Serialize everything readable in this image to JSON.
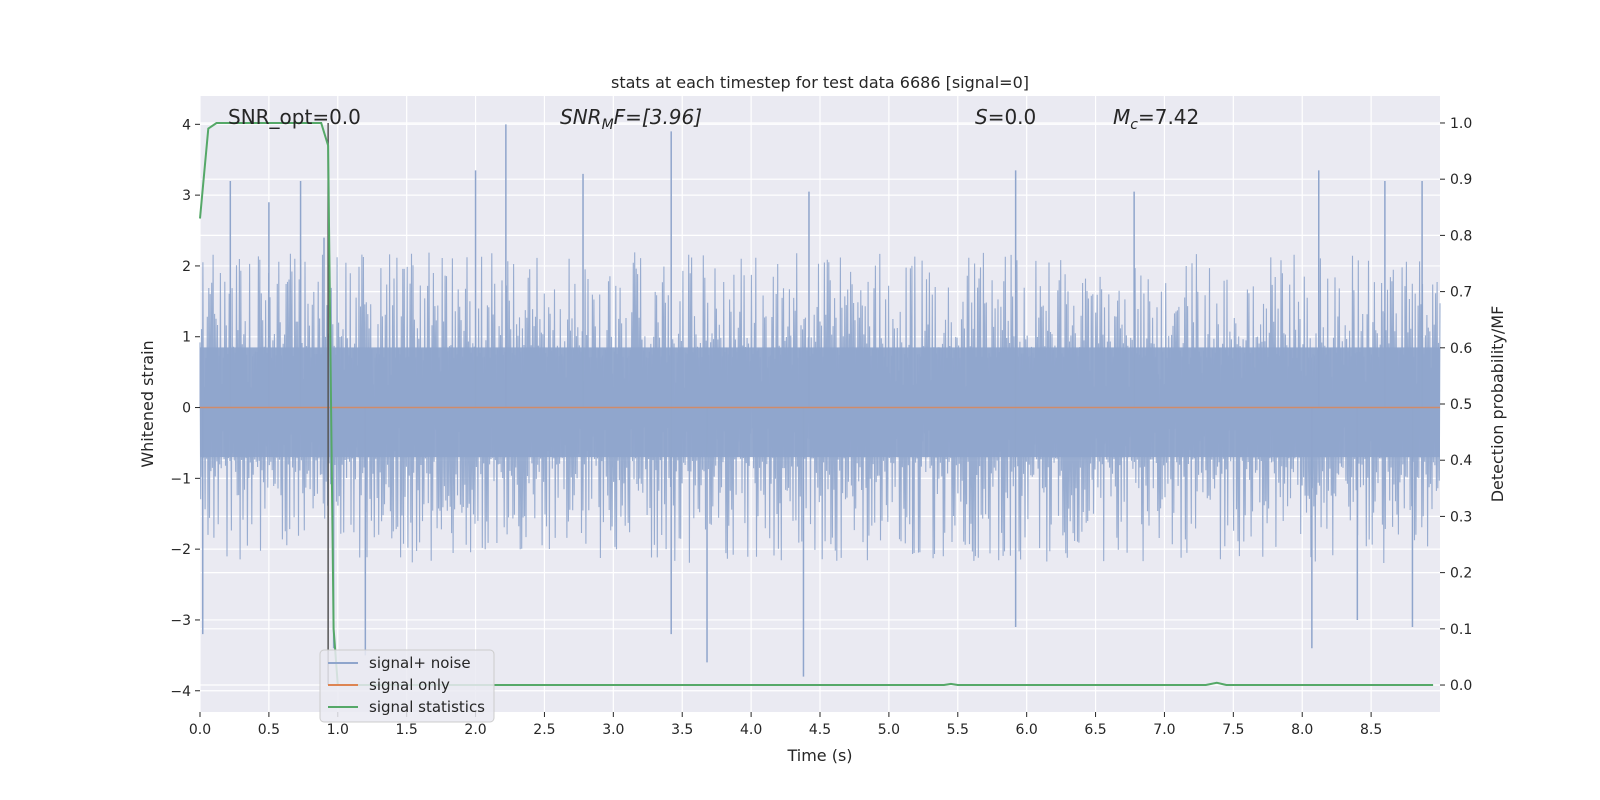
{
  "chart_data": {
    "type": "line",
    "title": "stats at each timestep for test data 6686 [signal=0]",
    "xlabel": "Time (s)",
    "ylabel": "Whitened strain",
    "y2label": "Detection probability/MF",
    "xlim": [
      0,
      9.0
    ],
    "ylim": [
      -4.3,
      4.4
    ],
    "y2lim": [
      -0.048,
      1.048
    ],
    "xticks": [
      0.0,
      0.5,
      1.0,
      1.5,
      2.0,
      2.5,
      3.0,
      3.5,
      4.0,
      4.5,
      5.0,
      5.5,
      6.0,
      6.5,
      7.0,
      7.5,
      8.0,
      8.5
    ],
    "xtick_labels": [
      "0.0",
      "0.5",
      "1.0",
      "1.5",
      "2.0",
      "2.5",
      "3.0",
      "3.5",
      "4.0",
      "4.5",
      "5.0",
      "5.5",
      "6.0",
      "6.5",
      "7.0",
      "7.5",
      "8.0",
      "8.5"
    ],
    "yticks": [
      4,
      3,
      2,
      1,
      0,
      -1,
      -2,
      -3,
      -4
    ],
    "ytick_labels": [
      "4",
      "3",
      "2",
      "1",
      "0",
      "−1",
      "−2",
      "−3",
      "−4"
    ],
    "y2ticks": [
      1.0,
      0.9,
      0.8,
      0.7,
      0.6,
      0.5,
      0.4,
      0.3,
      0.2,
      0.1,
      0.0
    ],
    "y2tick_labels": [
      "1.0",
      "0.9",
      "0.8",
      "0.7",
      "0.6",
      "0.5",
      "0.4",
      "0.3",
      "0.2",
      "0.1",
      "0.0"
    ],
    "grid": true,
    "legend_position": "lower-left",
    "marker_line_x": 0.93,
    "series": [
      {
        "name": "signal+ noise",
        "color": "#8fa5cc",
        "axis": "left",
        "kind": "noise",
        "sample_rate": 2048,
        "typical_envelope": [
          -2.0,
          2.0
        ],
        "peaks": [
          {
            "x": 0.22,
            "y": 3.2
          },
          {
            "x": 0.5,
            "y": 2.9
          },
          {
            "x": 0.73,
            "y": 3.2
          },
          {
            "x": 0.9,
            "y": 2.4
          },
          {
            "x": 2.0,
            "y": 3.35
          },
          {
            "x": 2.22,
            "y": 4.0
          },
          {
            "x": 2.78,
            "y": 3.3
          },
          {
            "x": 3.42,
            "y": 3.9
          },
          {
            "x": 4.42,
            "y": 3.05
          },
          {
            "x": 5.92,
            "y": 3.35
          },
          {
            "x": 6.78,
            "y": 3.05
          },
          {
            "x": 8.12,
            "y": 3.35
          },
          {
            "x": 8.6,
            "y": 3.2
          },
          {
            "x": 8.87,
            "y": 3.2
          },
          {
            "x": 0.02,
            "y": -3.2
          },
          {
            "x": 0.97,
            "y": -3.4
          },
          {
            "x": 1.2,
            "y": -3.5
          },
          {
            "x": 3.42,
            "y": -3.2
          },
          {
            "x": 3.68,
            "y": -3.6
          },
          {
            "x": 4.38,
            "y": -3.8
          },
          {
            "x": 5.92,
            "y": -3.1
          },
          {
            "x": 8.07,
            "y": -3.4
          },
          {
            "x": 8.4,
            "y": -3.0
          },
          {
            "x": 8.8,
            "y": -3.1
          }
        ]
      },
      {
        "name": "signal only",
        "color": "#dd8452",
        "axis": "left",
        "x": [
          0,
          9.0
        ],
        "y": [
          0,
          0
        ]
      },
      {
        "name": "signal statistics",
        "color": "#55a868",
        "axis": "right",
        "x": [
          0.0,
          0.06,
          0.12,
          0.2,
          0.4,
          0.6,
          0.8,
          0.88,
          0.93,
          0.97,
          1.0,
          2.0,
          4.0,
          5.4,
          5.45,
          5.5,
          7.3,
          7.38,
          7.45,
          8.95
        ],
        "y": [
          0.83,
          0.99,
          1.0,
          1.0,
          1.0,
          1.0,
          1.0,
          1.0,
          0.96,
          0.1,
          0.0,
          0.0,
          0.0,
          0.0,
          0.002,
          0.0,
          0.0,
          0.004,
          0.0,
          0.0
        ]
      }
    ],
    "annotations": {
      "snr_opt": "SNR_opt=0.0",
      "snr_mf_base": "SNR",
      "snr_mf_sub": "M",
      "snr_mf_rest": "F=[3.96]",
      "s_symbol": "S",
      "s_value": "=0.0",
      "mc_symbol": "M",
      "mc_sub": "c",
      "mc_value": "=7.42"
    }
  }
}
